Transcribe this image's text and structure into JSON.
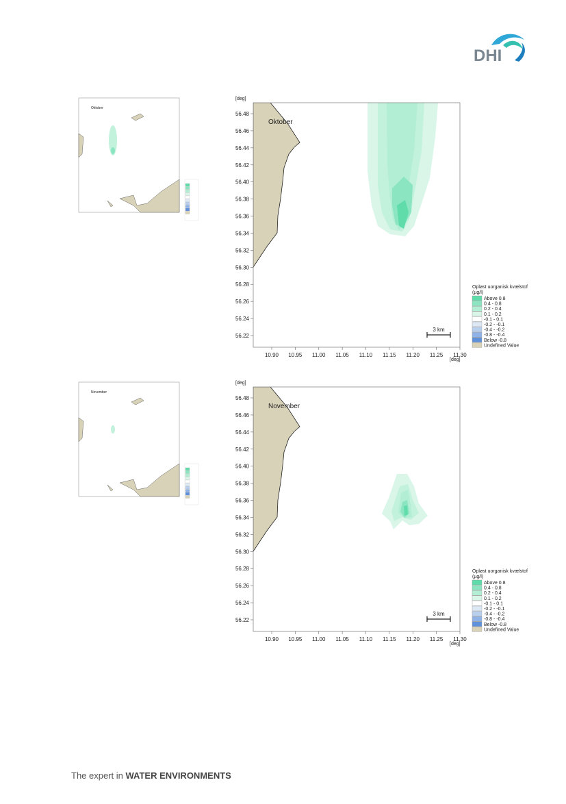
{
  "header": {
    "logo": "DHI"
  },
  "panels": [
    {
      "month": "Oktober",
      "map": {
        "y_unit": "[deg]",
        "x_unit": "[deg]",
        "yticks": [
          "56.48",
          "56.46",
          "56.44",
          "56.42",
          "56.40",
          "56.38",
          "56.36",
          "56.34",
          "56.32",
          "56.30",
          "56.28",
          "56.26",
          "56.24",
          "56.22"
        ],
        "xticks": [
          "10.90",
          "10.95",
          "11.00",
          "11.05",
          "11.10",
          "11.15",
          "11.20",
          "11.25",
          "11.30"
        ],
        "scale_bar": "3 km"
      },
      "legend": {
        "title": "Opløst uorganisk kvælstof",
        "unit": "(µg/l)",
        "items": [
          {
            "label": "Above  0.8",
            "color": "#5fdcaa"
          },
          {
            "label": "0.4 -  0.8",
            "color": "#8be5c0"
          },
          {
            "label": "0.2 -  0.4",
            "color": "#b2eed4"
          },
          {
            "label": "0.1 -  0.2",
            "color": "#d9f6e9"
          },
          {
            "label": "-0.1 -  0.1",
            "color": "#ffffff"
          },
          {
            "label": "-0.2 - -0.1",
            "color": "#dde8f5"
          },
          {
            "label": "-0.4 - -0.2",
            "color": "#b8cfee"
          },
          {
            "label": "-0.8 - -0.4",
            "color": "#8fb3e6"
          },
          {
            "label": "Below -0.8",
            "color": "#5f90da"
          },
          {
            "label": "Undefined Value",
            "color": "#d8d2b8"
          }
        ]
      }
    },
    {
      "month": "November",
      "map": {
        "y_unit": "[deg]",
        "x_unit": "[deg]",
        "yticks": [
          "56.48",
          "56.46",
          "56.44",
          "56.42",
          "56.40",
          "56.38",
          "56.36",
          "56.34",
          "56.32",
          "56.30",
          "56.28",
          "56.26",
          "56.24",
          "56.22"
        ],
        "xticks": [
          "10.90",
          "10.95",
          "11.00",
          "11.05",
          "11.10",
          "11.15",
          "11.20",
          "11.25",
          "11.30"
        ],
        "scale_bar": "3 km"
      },
      "legend": {
        "title": "Opløst uorganisk kvælstof",
        "unit": "(µg/l)",
        "items": [
          {
            "label": "Above  0.8",
            "color": "#5fdcaa"
          },
          {
            "label": "0.4 -  0.8",
            "color": "#8be5c0"
          },
          {
            "label": "0.2 -  0.4",
            "color": "#b2eed4"
          },
          {
            "label": "0.1 -  0.2",
            "color": "#d9f6e9"
          },
          {
            "label": "-0.1 -  0.1",
            "color": "#ffffff"
          },
          {
            "label": "-0.2 - -0.1",
            "color": "#dde8f5"
          },
          {
            "label": "-0.4 - -0.2",
            "color": "#b8cfee"
          },
          {
            "label": "-0.8 - -0.4",
            "color": "#8fb3e6"
          },
          {
            "label": "Below -0.8",
            "color": "#5f90da"
          },
          {
            "label": "Undefined Value",
            "color": "#d8d2b8"
          }
        ]
      }
    }
  ],
  "footer": {
    "tagline_prefix": "The expert in",
    "tagline_emphasis": "WATER ENVIRONMENTS"
  }
}
